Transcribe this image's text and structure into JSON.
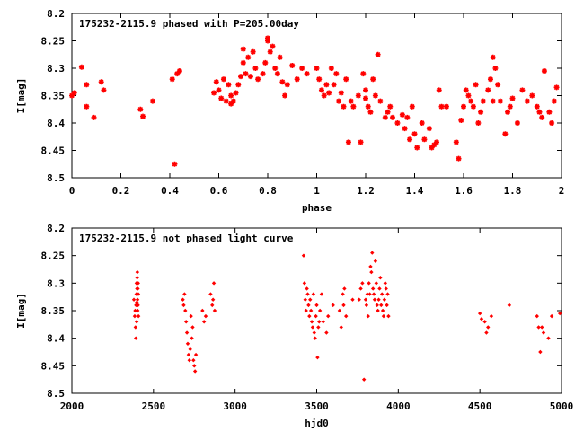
{
  "colors": {
    "points": "#ff0000",
    "frame": "#000000",
    "background": "#ffffff"
  },
  "chart_data": [
    {
      "type": "scatter",
      "title": "175232-2115.9 phased with P=205.00day",
      "xlabel": "phase",
      "ylabel": "I[mag]",
      "xlim": [
        0,
        2
      ],
      "ylim": [
        8.2,
        8.5
      ],
      "y_inverted": true,
      "xticks": [
        "0",
        "0.2",
        "0.4",
        "0.6",
        "0.8",
        "1",
        "1.2",
        "1.4",
        "1.6",
        "1.8",
        "2"
      ],
      "yticks": [
        "8.2",
        "8.25",
        "8.3",
        "8.35",
        "8.4",
        "8.45",
        "8.5"
      ],
      "marker": "star",
      "grid": false,
      "x": [
        0.0,
        0.01,
        0.04,
        0.06,
        0.06,
        0.09,
        0.12,
        0.13,
        0.28,
        0.29,
        0.33,
        0.41,
        0.42,
        0.43,
        0.44,
        0.58,
        0.59,
        0.6,
        0.61,
        0.62,
        0.63,
        0.64,
        0.65,
        0.65,
        0.66,
        0.67,
        0.68,
        0.69,
        0.7,
        0.7,
        0.71,
        0.72,
        0.73,
        0.74,
        0.75,
        0.76,
        0.78,
        0.79,
        0.8,
        0.8,
        0.81,
        0.82,
        0.83,
        0.84,
        0.85,
        0.86,
        0.87,
        0.88,
        0.9,
        0.92,
        0.94,
        0.96,
        1.0,
        1.01,
        1.02,
        1.03,
        1.04,
        1.05,
        1.06,
        1.07,
        1.08,
        1.09,
        1.1,
        1.11,
        1.12,
        1.13,
        1.14,
        1.15,
        1.17,
        1.18,
        1.19,
        1.2,
        1.2,
        1.21,
        1.22,
        1.23,
        1.24,
        1.25,
        1.26,
        1.28,
        1.29,
        1.3,
        1.31,
        1.33,
        1.35,
        1.36,
        1.37,
        1.38,
        1.39,
        1.4,
        1.41,
        1.43,
        1.44,
        1.46,
        1.47,
        1.48,
        1.49,
        1.5,
        1.51,
        1.53,
        1.57,
        1.58,
        1.59,
        1.6,
        1.61,
        1.62,
        1.63,
        1.64,
        1.65,
        1.66,
        1.67,
        1.68,
        1.7,
        1.71,
        1.72,
        1.72,
        1.73,
        1.74,
        1.75,
        1.77,
        1.78,
        1.79,
        1.8,
        1.82,
        1.84,
        1.86,
        1.88,
        1.9,
        1.91,
        1.92,
        1.93,
        1.95,
        1.96,
        1.97,
        1.98
      ],
      "y": [
        8.35,
        8.345,
        8.298,
        8.33,
        8.37,
        8.39,
        8.325,
        8.34,
        8.375,
        8.388,
        8.36,
        8.32,
        8.475,
        8.31,
        8.305,
        8.345,
        8.325,
        8.34,
        8.355,
        8.32,
        8.36,
        8.33,
        8.35,
        8.365,
        8.36,
        8.345,
        8.33,
        8.315,
        8.29,
        8.265,
        8.31,
        8.28,
        8.315,
        8.27,
        8.3,
        8.32,
        8.31,
        8.29,
        8.25,
        8.245,
        8.27,
        8.26,
        8.3,
        8.31,
        8.28,
        8.325,
        8.35,
        8.33,
        8.295,
        8.32,
        8.3,
        8.31,
        8.3,
        8.32,
        8.34,
        8.35,
        8.33,
        8.345,
        8.3,
        8.33,
        8.31,
        8.36,
        8.345,
        8.37,
        8.32,
        8.435,
        8.36,
        8.37,
        8.35,
        8.435,
        8.31,
        8.34,
        8.355,
        8.37,
        8.38,
        8.32,
        8.35,
        8.275,
        8.36,
        8.39,
        8.38,
        8.37,
        8.39,
        8.4,
        8.385,
        8.41,
        8.39,
        8.43,
        8.37,
        8.42,
        8.445,
        8.4,
        8.43,
        8.41,
        8.445,
        8.44,
        8.435,
        8.34,
        8.37,
        8.37,
        8.435,
        8.465,
        8.395,
        8.37,
        8.34,
        8.35,
        8.36,
        8.37,
        8.33,
        8.4,
        8.38,
        8.36,
        8.34,
        8.32,
        8.28,
        8.36,
        8.3,
        8.33,
        8.36,
        8.42,
        8.38,
        8.37,
        8.355,
        8.4,
        8.34,
        8.36,
        8.35,
        8.37,
        8.38,
        8.39,
        8.305,
        8.38,
        8.4,
        8.36,
        8.335
      ]
    },
    {
      "type": "scatter",
      "title": "175232-2115.9 not phased light curve",
      "xlabel": "hjd0",
      "ylabel": "I[mag]",
      "xlim": [
        2000,
        5000
      ],
      "ylim": [
        8.2,
        8.5
      ],
      "y_inverted": true,
      "xticks": [
        "2000",
        "2500",
        "3000",
        "3500",
        "4000",
        "4500",
        "5000"
      ],
      "yticks": [
        "8.2",
        "8.25",
        "8.3",
        "8.35",
        "8.4",
        "8.45",
        "8.5"
      ],
      "marker": "diamond",
      "grid": false,
      "x": [
        2380,
        2385,
        2388,
        2390,
        2392,
        2393,
        2395,
        2396,
        2397,
        2398,
        2399,
        2400,
        2401,
        2402,
        2403,
        2404,
        2405,
        2406,
        2407,
        2408,
        2680,
        2685,
        2690,
        2695,
        2700,
        2705,
        2710,
        2715,
        2720,
        2725,
        2730,
        2735,
        2740,
        2745,
        2750,
        2755,
        2760,
        2800,
        2810,
        2820,
        2850,
        2860,
        2865,
        2870,
        2875,
        3420,
        3425,
        3430,
        3435,
        3440,
        3445,
        3450,
        3455,
        3460,
        3465,
        3470,
        3475,
        3480,
        3485,
        3490,
        3495,
        3500,
        3505,
        3510,
        3515,
        3520,
        3530,
        3540,
        3560,
        3570,
        3600,
        3640,
        3650,
        3660,
        3665,
        3670,
        3680,
        3720,
        3760,
        3770,
        3780,
        3790,
        3800,
        3805,
        3810,
        3815,
        3820,
        3825,
        3830,
        3835,
        3840,
        3845,
        3850,
        3855,
        3860,
        3865,
        3870,
        3875,
        3880,
        3885,
        3890,
        3895,
        3900,
        3905,
        3910,
        3915,
        3920,
        3925,
        3930,
        3935,
        3940,
        4500,
        4510,
        4530,
        4540,
        4550,
        4570,
        4680,
        4850,
        4860,
        4870,
        4880,
        4890,
        4920,
        4940,
        4990
      ],
      "y": [
        8.33,
        8.36,
        8.35,
        8.38,
        8.4,
        8.34,
        8.32,
        8.3,
        8.37,
        8.335,
        8.31,
        8.29,
        8.28,
        8.33,
        8.35,
        8.31,
        8.34,
        8.3,
        8.32,
        8.36,
        8.33,
        8.34,
        8.32,
        8.35,
        8.37,
        8.39,
        8.41,
        8.43,
        8.44,
        8.42,
        8.36,
        8.4,
        8.38,
        8.44,
        8.45,
        8.46,
        8.43,
        8.35,
        8.37,
        8.36,
        8.32,
        8.34,
        8.33,
        8.3,
        8.35,
        8.25,
        8.3,
        8.33,
        8.35,
        8.31,
        8.32,
        8.34,
        8.36,
        8.33,
        8.35,
        8.37,
        8.38,
        8.32,
        8.39,
        8.4,
        8.36,
        8.34,
        8.435,
        8.38,
        8.37,
        8.35,
        8.32,
        8.37,
        8.39,
        8.36,
        8.34,
        8.35,
        8.38,
        8.32,
        8.34,
        8.31,
        8.36,
        8.33,
        8.33,
        8.31,
        8.3,
        8.475,
        8.33,
        8.34,
        8.32,
        8.36,
        8.3,
        8.32,
        8.27,
        8.28,
        8.245,
        8.31,
        8.32,
        8.33,
        8.26,
        8.3,
        8.34,
        8.35,
        8.33,
        8.31,
        8.29,
        8.34,
        8.32,
        8.35,
        8.36,
        8.33,
        8.3,
        8.31,
        8.34,
        8.32,
        8.36,
        8.355,
        8.365,
        8.37,
        8.39,
        8.38,
        8.36,
        8.34,
        8.36,
        8.38,
        8.425,
        8.38,
        8.39,
        8.4,
        8.36,
        8.355
      ]
    }
  ]
}
